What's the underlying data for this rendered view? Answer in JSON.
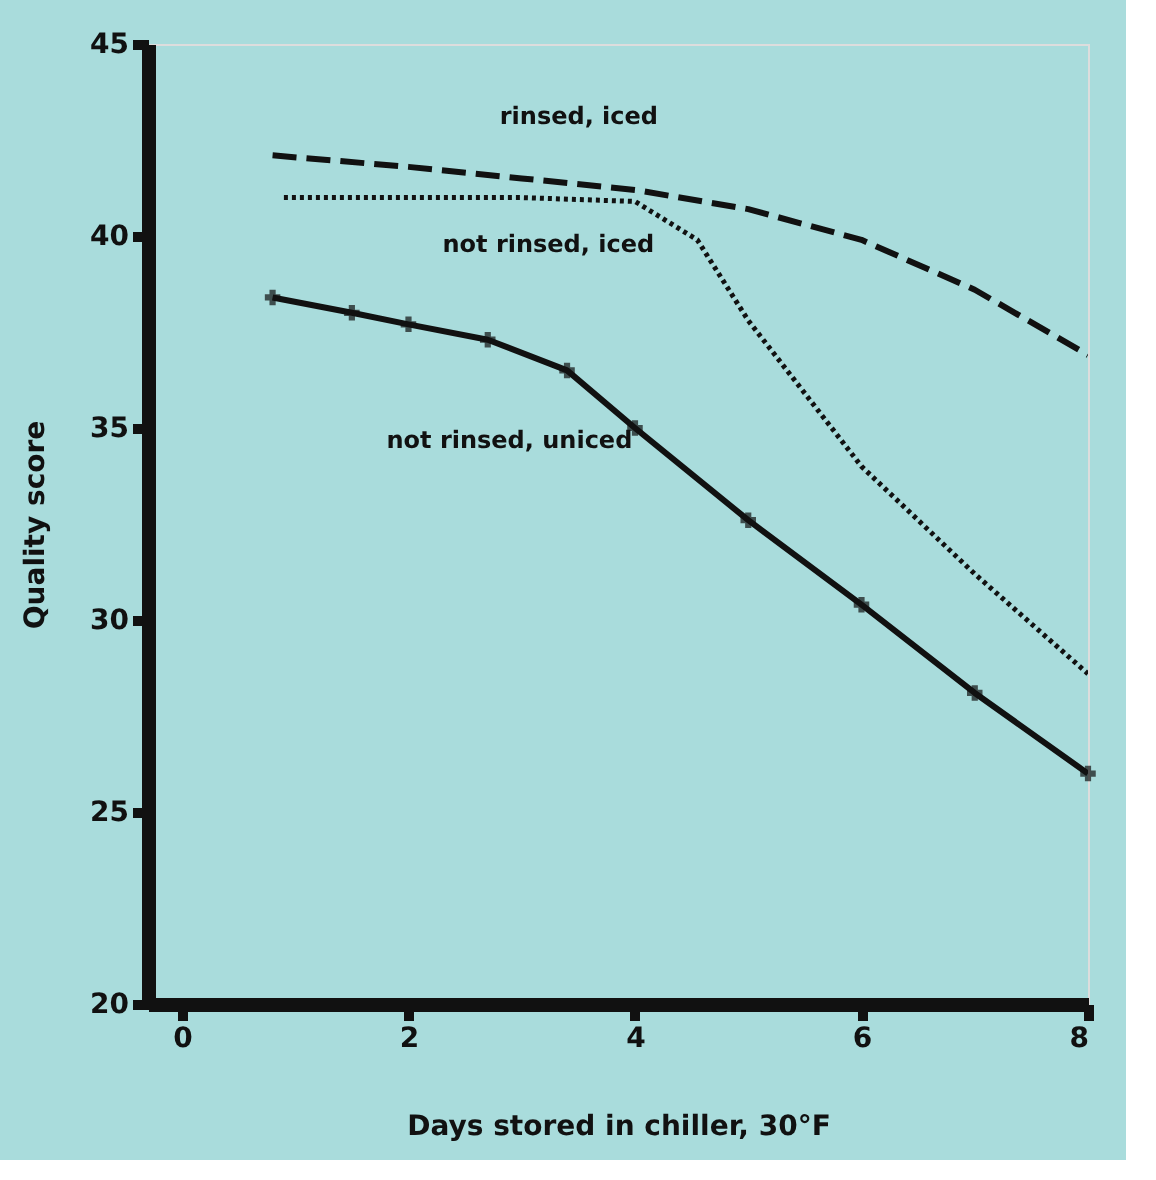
{
  "chart_data": {
    "type": "line",
    "xlabel": "Days stored in chiller, 30°F",
    "ylabel": "Quality score",
    "xlim": [
      -0.3,
      8
    ],
    "xticks": [
      0,
      2,
      4,
      6,
      8
    ],
    "ylim": [
      20,
      45
    ],
    "yticks": [
      20,
      25,
      30,
      35,
      40,
      45
    ],
    "grid": false,
    "series": [
      {
        "name": "rinsed, iced",
        "color": "#111111",
        "line_style": "dashed",
        "x": [
          0.8,
          2,
          3,
          4,
          5,
          6,
          7,
          8
        ],
        "values": [
          42.1,
          41.8,
          41.5,
          41.2,
          40.7,
          39.9,
          38.6,
          36.9
        ]
      },
      {
        "name": "not rinsed, iced",
        "color": "#111111",
        "line_style": "dotted",
        "x": [
          0.9,
          2,
          3,
          4,
          4.55,
          5,
          6,
          7,
          8
        ],
        "values": [
          41.0,
          41.0,
          41.0,
          40.9,
          39.9,
          37.8,
          34.0,
          31.2,
          28.6
        ]
      },
      {
        "name": "not rinsed, uniced",
        "color": "#111111",
        "line_style": "solid",
        "marker": "cross",
        "x": [
          0.8,
          1.5,
          2,
          2.7,
          3.4,
          4,
          5,
          6,
          7,
          8
        ],
        "values": [
          38.4,
          38.0,
          37.7,
          37.3,
          36.5,
          35.0,
          32.6,
          30.4,
          28.1,
          26.0
        ]
      }
    ]
  }
}
